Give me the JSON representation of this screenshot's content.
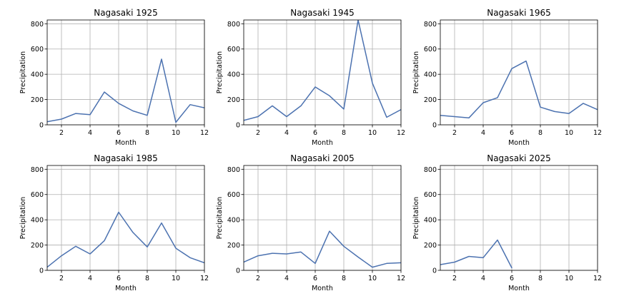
{
  "chart_data": [
    {
      "type": "line",
      "title": "Nagasaki 1925",
      "xlabel": "Month",
      "ylabel": "Precipitation",
      "x": [
        1,
        2,
        3,
        4,
        5,
        6,
        7,
        8,
        9,
        10,
        11,
        12
      ],
      "values": [
        25,
        45,
        90,
        80,
        260,
        170,
        110,
        75,
        520,
        20,
        160,
        135
      ],
      "xlim": [
        1,
        12
      ],
      "ylim": [
        0,
        830
      ],
      "xticks": [
        2,
        4,
        6,
        8,
        10,
        12
      ],
      "yticks": [
        0,
        200,
        400,
        600,
        800
      ],
      "color": "#4c72b0",
      "grid": true
    },
    {
      "type": "line",
      "title": "Nagasaki 1945",
      "xlabel": "Month",
      "ylabel": "Precipitation",
      "x": [
        1,
        2,
        3,
        4,
        5,
        6,
        7,
        8,
        9,
        10,
        11,
        12
      ],
      "values": [
        35,
        65,
        150,
        65,
        150,
        300,
        230,
        125,
        830,
        330,
        60,
        120
      ],
      "xlim": [
        1,
        12
      ],
      "ylim": [
        0,
        830
      ],
      "xticks": [
        2,
        4,
        6,
        8,
        10,
        12
      ],
      "yticks": [
        0,
        200,
        400,
        600,
        800
      ],
      "color": "#4c72b0",
      "grid": true
    },
    {
      "type": "line",
      "title": "Nagasaki 1965",
      "xlabel": "Month",
      "ylabel": "Precipitation",
      "x": [
        1,
        2,
        3,
        4,
        5,
        6,
        7,
        8,
        9,
        10,
        11,
        12
      ],
      "values": [
        75,
        65,
        55,
        175,
        215,
        445,
        505,
        140,
        105,
        90,
        170,
        120
      ],
      "xlim": [
        1,
        12
      ],
      "ylim": [
        0,
        830
      ],
      "xticks": [
        2,
        4,
        6,
        8,
        10,
        12
      ],
      "yticks": [
        0,
        200,
        400,
        600,
        800
      ],
      "color": "#4c72b0",
      "grid": true
    },
    {
      "type": "line",
      "title": "Nagasaki 1985",
      "xlabel": "Month",
      "ylabel": "Precipitation",
      "x": [
        1,
        2,
        3,
        4,
        5,
        6,
        7,
        8,
        9,
        10,
        11,
        12
      ],
      "values": [
        25,
        115,
        190,
        130,
        235,
        460,
        300,
        185,
        375,
        175,
        100,
        60
      ],
      "xlim": [
        1,
        12
      ],
      "ylim": [
        0,
        830
      ],
      "xticks": [
        2,
        4,
        6,
        8,
        10,
        12
      ],
      "yticks": [
        0,
        200,
        400,
        600,
        800
      ],
      "color": "#4c72b0",
      "grid": true
    },
    {
      "type": "line",
      "title": "Nagasaki 2005",
      "xlabel": "Month",
      "ylabel": "Precipitation",
      "x": [
        1,
        2,
        3,
        4,
        5,
        6,
        7,
        8,
        9,
        10,
        11,
        12
      ],
      "values": [
        65,
        115,
        135,
        130,
        145,
        55,
        310,
        190,
        105,
        25,
        55,
        60
      ],
      "xlim": [
        1,
        12
      ],
      "ylim": [
        0,
        830
      ],
      "xticks": [
        2,
        4,
        6,
        8,
        10,
        12
      ],
      "yticks": [
        0,
        200,
        400,
        600,
        800
      ],
      "color": "#4c72b0",
      "grid": true
    },
    {
      "type": "line",
      "title": "Nagasaki 2025",
      "xlabel": "Month",
      "ylabel": "Precipitation",
      "x": [
        1,
        2,
        3,
        4,
        5,
        6
      ],
      "values": [
        45,
        65,
        110,
        100,
        240,
        20
      ],
      "xlim": [
        1,
        12
      ],
      "ylim": [
        0,
        830
      ],
      "xticks": [
        2,
        4,
        6,
        8,
        10,
        12
      ],
      "yticks": [
        0,
        200,
        400,
        600,
        800
      ],
      "color": "#4c72b0",
      "grid": true
    }
  ]
}
